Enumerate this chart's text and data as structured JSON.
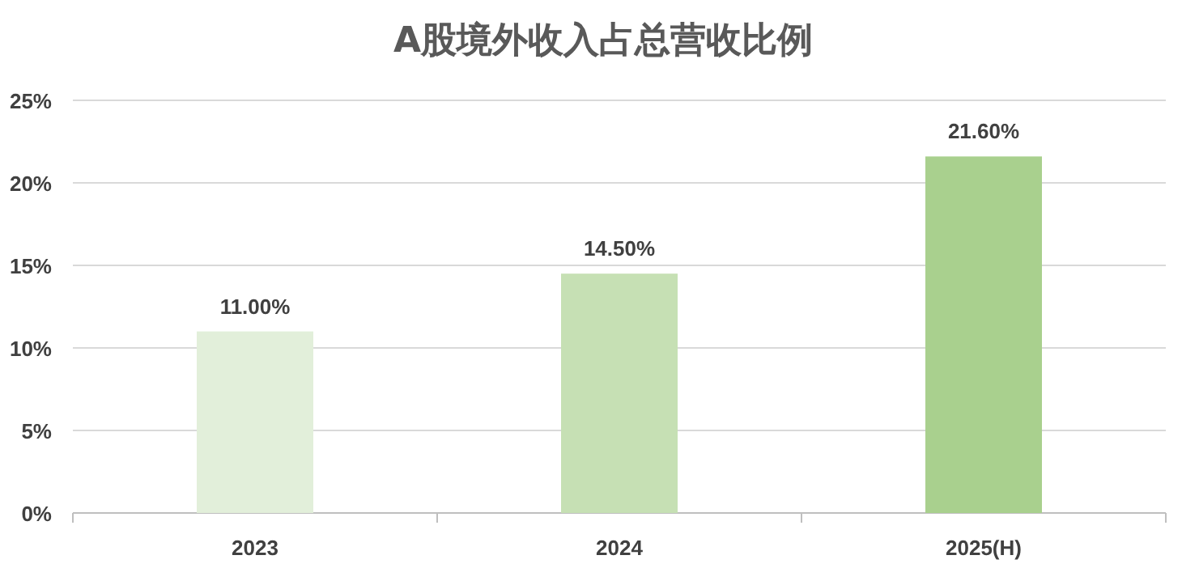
{
  "chart_data": {
    "type": "bar",
    "title": "A股境外收入占总营收比例",
    "categories": [
      "2023",
      "2024",
      "2025(H)"
    ],
    "values": [
      11.0,
      14.5,
      21.6
    ],
    "colors": [
      "#e2efda",
      "#c6e0b4",
      "#a9d08e"
    ],
    "value_labels": [
      "11.00%",
      "14.50%",
      "21.60%"
    ],
    "ylim": [
      0,
      25
    ],
    "yticks": [
      {
        "value": 0,
        "label": "0%"
      },
      {
        "value": 5,
        "label": "5%"
      },
      {
        "value": 10,
        "label": "10%"
      },
      {
        "value": 15,
        "label": "15%"
      },
      {
        "value": 20,
        "label": "20%"
      },
      {
        "value": 25,
        "label": "25%"
      }
    ],
    "grid": "y"
  }
}
